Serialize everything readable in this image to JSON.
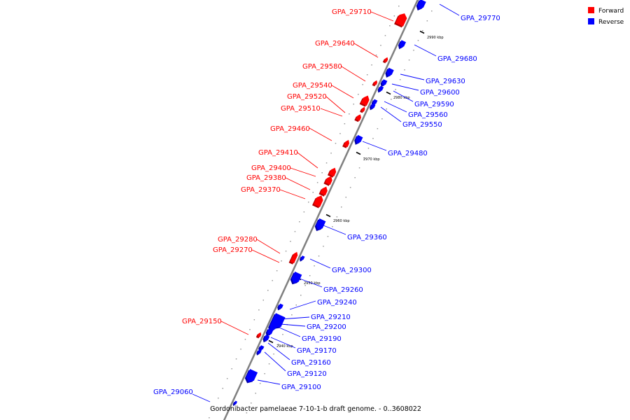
{
  "caption": "Gordonibacter pamelaeae 7-10-1-b draft genome. - 0..3608022",
  "legend": [
    {
      "label": "Forward",
      "color": "#ff0000"
    },
    {
      "label": "Reverse",
      "color": "#0000ff"
    }
  ],
  "colors": {
    "forward": "#ff0000",
    "reverse": "#0000ff",
    "backbone": "#808080"
  },
  "ticks": [
    {
      "text": "2990 kbp"
    },
    {
      "text": "2980 kbp"
    },
    {
      "text": "2970 kbp"
    },
    {
      "text": "2960 kbp"
    },
    {
      "text": "2950 kbp"
    },
    {
      "text": "2940 kbp"
    }
  ],
  "genes": [
    {
      "name": "GPA_29770",
      "strand": "reverse"
    },
    {
      "name": "GPA_29710",
      "strand": "forward"
    },
    {
      "name": "GPA_29680",
      "strand": "reverse"
    },
    {
      "name": "GPA_29640",
      "strand": "forward"
    },
    {
      "name": "GPA_29630",
      "strand": "reverse"
    },
    {
      "name": "GPA_29600",
      "strand": "reverse"
    },
    {
      "name": "GPA_29590",
      "strand": "reverse"
    },
    {
      "name": "GPA_29580",
      "strand": "forward"
    },
    {
      "name": "GPA_29560",
      "strand": "reverse"
    },
    {
      "name": "GPA_29550",
      "strand": "reverse"
    },
    {
      "name": "GPA_29540",
      "strand": "forward"
    },
    {
      "name": "GPA_29520",
      "strand": "forward"
    },
    {
      "name": "GPA_29510",
      "strand": "forward"
    },
    {
      "name": "GPA_29480",
      "strand": "reverse"
    },
    {
      "name": "GPA_29460",
      "strand": "forward"
    },
    {
      "name": "GPA_29410",
      "strand": "forward"
    },
    {
      "name": "GPA_29400",
      "strand": "forward"
    },
    {
      "name": "GPA_29380",
      "strand": "forward"
    },
    {
      "name": "GPA_29370",
      "strand": "forward"
    },
    {
      "name": "GPA_29360",
      "strand": "reverse"
    },
    {
      "name": "GPA_29300",
      "strand": "reverse"
    },
    {
      "name": "GPA_29280",
      "strand": "forward"
    },
    {
      "name": "GPA_29270",
      "strand": "forward"
    },
    {
      "name": "GPA_29260",
      "strand": "reverse"
    },
    {
      "name": "GPA_29240",
      "strand": "reverse"
    },
    {
      "name": "GPA_29210",
      "strand": "reverse"
    },
    {
      "name": "GPA_29200",
      "strand": "reverse"
    },
    {
      "name": "GPA_29190",
      "strand": "reverse"
    },
    {
      "name": "GPA_29170",
      "strand": "reverse"
    },
    {
      "name": "GPA_29160",
      "strand": "reverse"
    },
    {
      "name": "GPA_29150",
      "strand": "forward"
    },
    {
      "name": "GPA_29120",
      "strand": "reverse"
    },
    {
      "name": "GPA_29100",
      "strand": "reverse"
    },
    {
      "name": "GPA_29060",
      "strand": "reverse"
    }
  ]
}
